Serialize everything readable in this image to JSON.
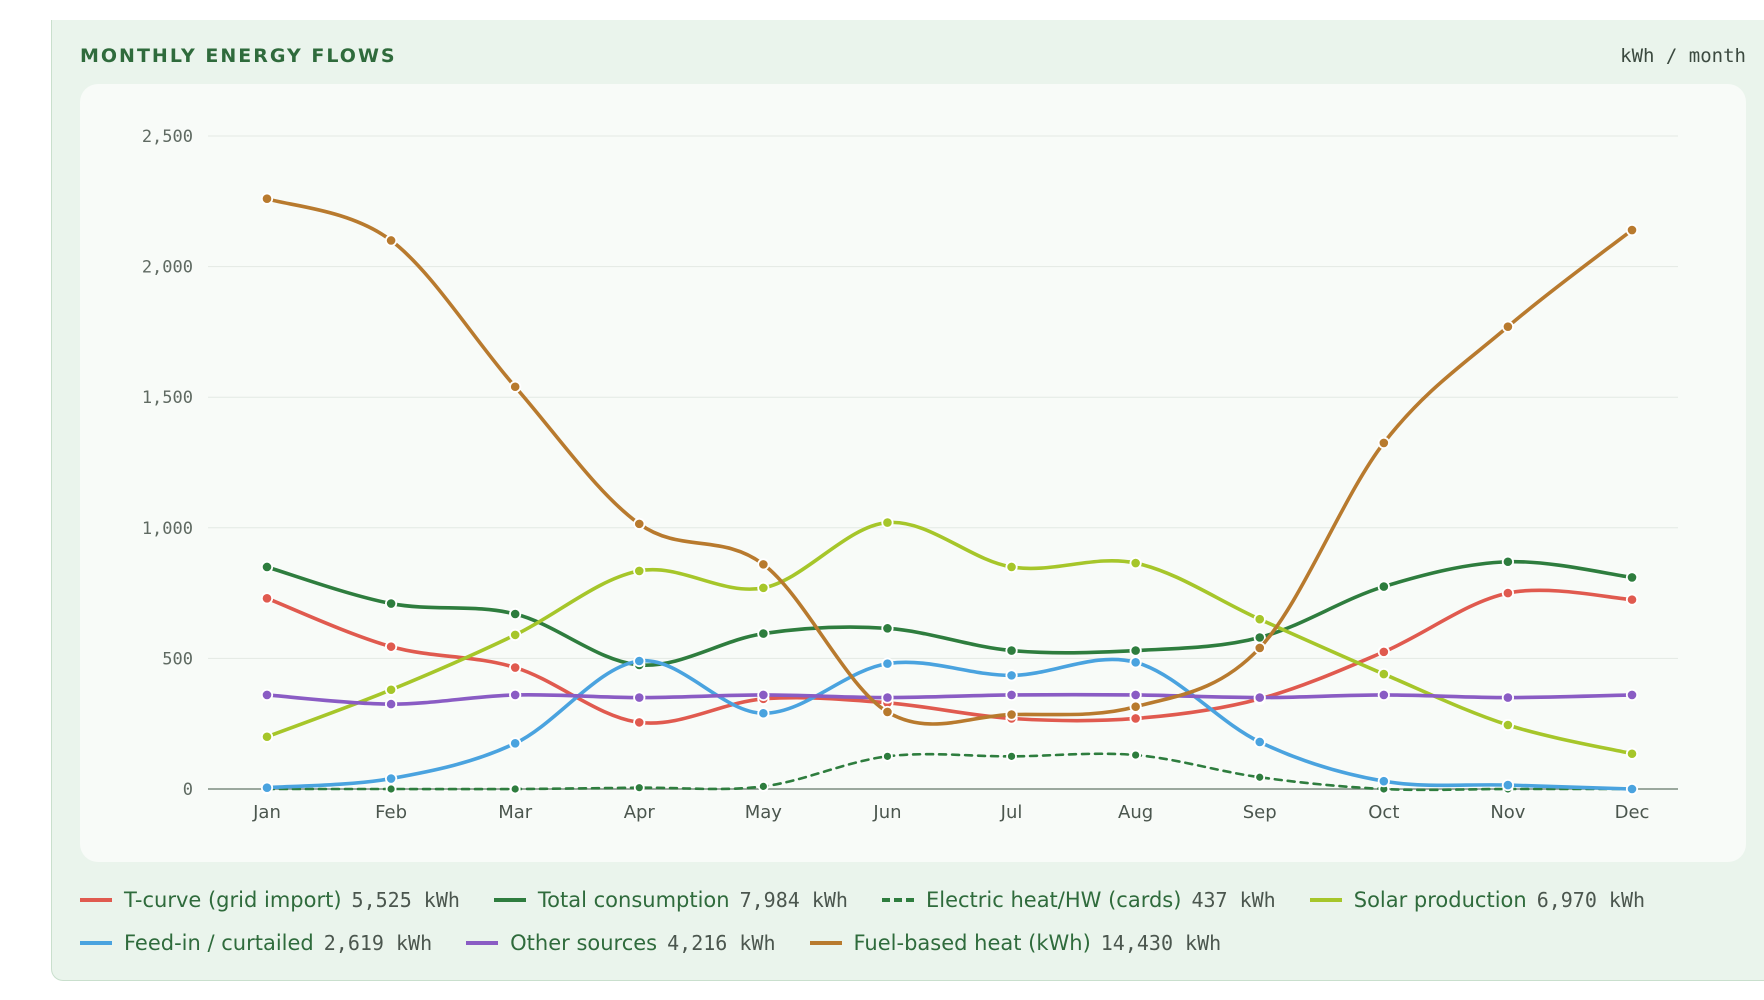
{
  "header": {
    "title": "MONTHLY ENERGY FLOWS",
    "unit": "kWh / month"
  },
  "colors": {
    "grid_import": "#e05a4f",
    "total_consumption": "#2e7d3e",
    "electric_heat": "#2e7d3e",
    "solar": "#a6c62a",
    "feed_in": "#4aa3df",
    "other": "#8a5cc4",
    "fuel_heat": "#b87a2e",
    "panel_bg": "#eaf4ec",
    "card_bg": "#f8fbf8"
  },
  "chart_data": {
    "type": "line",
    "title": "MONTHLY ENERGY FLOWS",
    "unit": "kWh / month",
    "categories": [
      "Jan",
      "Feb",
      "Mar",
      "Apr",
      "May",
      "Jun",
      "Jul",
      "Aug",
      "Sep",
      "Oct",
      "Nov",
      "Dec"
    ],
    "ylim": [
      0,
      2500
    ],
    "yticks": [
      "0",
      "500",
      "1,000",
      "1,500",
      "2,000",
      "2,500"
    ],
    "ytick_values": [
      0,
      500,
      1000,
      1500,
      2000,
      2500
    ],
    "grid": true,
    "legend_position": "bottom",
    "series": [
      {
        "name": "T-curve (grid import)",
        "total": "5,525 kWh",
        "color": "#e05a4f",
        "dashed": false,
        "values": [
          730,
          545,
          465,
          255,
          345,
          330,
          270,
          270,
          345,
          525,
          750,
          725
        ]
      },
      {
        "name": "Total consumption",
        "total": "7,984 kWh",
        "color": "#2e7d3e",
        "dashed": false,
        "values": [
          850,
          710,
          670,
          475,
          595,
          615,
          530,
          530,
          580,
          775,
          870,
          810
        ]
      },
      {
        "name": "Electric heat/HW (cards)",
        "total": "437 kWh",
        "color": "#2e7d3e",
        "dashed": true,
        "values": [
          0,
          0,
          0,
          5,
          10,
          125,
          125,
          130,
          45,
          0,
          0,
          0
        ]
      },
      {
        "name": "Solar production",
        "total": "6,970 kWh",
        "color": "#a6c62a",
        "dashed": false,
        "values": [
          200,
          380,
          590,
          835,
          770,
          1020,
          850,
          865,
          650,
          440,
          245,
          135
        ]
      },
      {
        "name": "Feed-in / curtailed",
        "total": "2,619 kWh",
        "color": "#4aa3df",
        "dashed": false,
        "values": [
          5,
          40,
          175,
          490,
          290,
          480,
          435,
          485,
          180,
          30,
          15,
          0
        ]
      },
      {
        "name": "Other sources",
        "total": "4,216 kWh",
        "color": "#8a5cc4",
        "dashed": false,
        "values": [
          360,
          325,
          360,
          350,
          360,
          350,
          360,
          360,
          350,
          360,
          350,
          360
        ]
      },
      {
        "name": "Fuel-based heat (kWh)",
        "total": "14,430 kWh",
        "color": "#b87a2e",
        "dashed": false,
        "values": [
          2260,
          2100,
          1540,
          1015,
          860,
          295,
          285,
          315,
          540,
          1325,
          1770,
          2140
        ]
      }
    ]
  }
}
